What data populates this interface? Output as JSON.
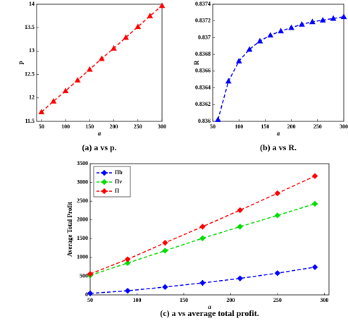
{
  "chart_data": [
    {
      "type": "line",
      "marker": "triangle",
      "color": "#ff0000",
      "caption": "(a) a vs p.",
      "xlabel": "a",
      "ylabel": "p",
      "x": [
        50,
        75,
        100,
        125,
        150,
        175,
        200,
        225,
        250,
        275,
        300
      ],
      "values": [
        11.7,
        11.93,
        12.15,
        12.38,
        12.61,
        12.84,
        13.06,
        13.29,
        13.52,
        13.75,
        13.97
      ],
      "xlim": [
        40,
        300
      ],
      "xticks": [
        50,
        100,
        150,
        200,
        250,
        300
      ],
      "ylim": [
        11.5,
        14
      ],
      "yticks": [
        11.5,
        12,
        12.5,
        13,
        13.5,
        14
      ]
    },
    {
      "type": "line",
      "marker": "triangle",
      "color": "#0000ff",
      "caption": "(b) a vs R.",
      "xlabel": "a",
      "ylabel": "R",
      "x": [
        60,
        80,
        100,
        120,
        140,
        160,
        180,
        200,
        220,
        240,
        260,
        280,
        300
      ],
      "values": [
        0.83602,
        0.83648,
        0.83672,
        0.83686,
        0.83696,
        0.83703,
        0.83708,
        0.83712,
        0.83716,
        0.83719,
        0.83721,
        0.83723,
        0.83725
      ],
      "xlim": [
        50,
        300
      ],
      "xticks": [
        50,
        100,
        150,
        200,
        250,
        300
      ],
      "ylim": [
        0.836,
        0.8374
      ],
      "yticks": [
        0.836,
        0.8362,
        0.8364,
        0.8366,
        0.8368,
        0.837,
        0.8372,
        0.8374
      ]
    },
    {
      "type": "line",
      "marker": "diamond",
      "caption": "(c) a vs average total profit.",
      "xlabel": "a",
      "ylabel": "Average Total Profit",
      "x": [
        50,
        90,
        130,
        170,
        210,
        250,
        290
      ],
      "series": [
        {
          "name": "Πb",
          "color": "#0000ff",
          "values": [
            40,
            110,
            210,
            320,
            440,
            580,
            740
          ]
        },
        {
          "name": "Πv",
          "color": "#00dd00",
          "values": [
            520,
            850,
            1180,
            1510,
            1820,
            2120,
            2430
          ]
        },
        {
          "name": "Π",
          "color": "#ff0000",
          "values": [
            560,
            950,
            1390,
            1820,
            2260,
            2710,
            3170
          ]
        }
      ],
      "xlim": [
        50,
        305
      ],
      "xticks": [
        50,
        100,
        150,
        200,
        250,
        300
      ],
      "ylim": [
        0,
        3500
      ],
      "yticks": [
        0,
        500,
        1000,
        1500,
        2000,
        2500,
        3000,
        3500
      ],
      "legend": "upper-left"
    }
  ]
}
